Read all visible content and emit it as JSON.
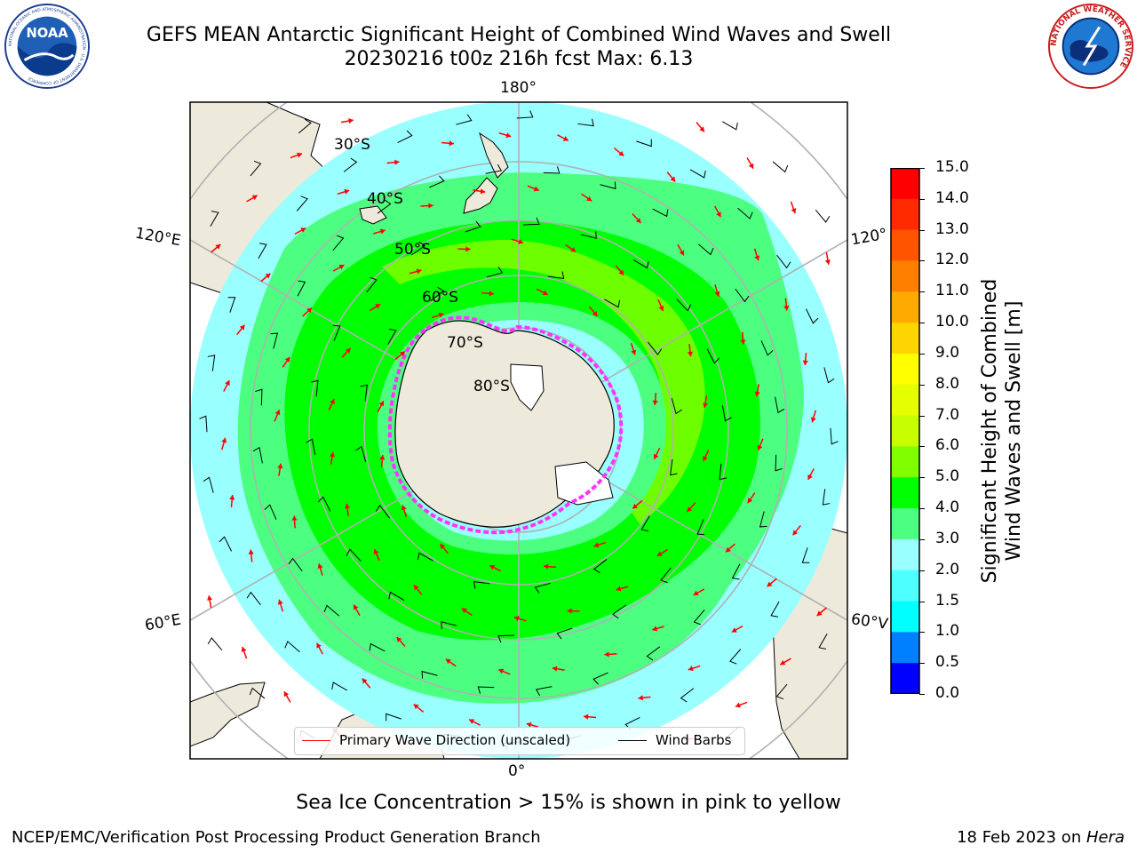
{
  "header": {
    "title_line1": "GEFS MEAN Antarctic Significant Height of Combined Wind Waves and Swell",
    "title_line2": "20230216 t00z 216h fcst   Max: 6.13"
  },
  "logos": {
    "noaa": {
      "center_text": "NOAA",
      "ring_text": "NATIONAL OCEANIC AND ATMOSPHERIC ADMINISTRATION · U.S. DEPARTMENT OF COMMERCE"
    },
    "nws": {
      "ring_text": "NATIONAL WEATHER SERVICE"
    }
  },
  "map": {
    "projection": "south-polar-stereographic",
    "longitude_labels": {
      "top": "180°",
      "bottom": "0°",
      "upper_left": "120°E",
      "lower_left": "60°E",
      "upper_right": "120°",
      "lower_right": "60°V"
    },
    "latitude_labels": [
      "30°S",
      "40°S",
      "50°S",
      "60°S",
      "70°S",
      "80°S"
    ],
    "colors": {
      "land": "#eeeadb",
      "ocean_low": "#8fffff",
      "ocean_mid": "#4dff80",
      "ocean_high": "#00ff00",
      "ice": "#ff33ff",
      "wave_arrow": "#ff0000",
      "wind_barb": "#000000",
      "graticule": "#b0b0b0"
    }
  },
  "legend": {
    "items": [
      {
        "label": "Primary Wave Direction (unscaled)",
        "color": "#ff0000"
      },
      {
        "label": "Wind Barbs",
        "color": "#000000"
      }
    ]
  },
  "colorbar": {
    "label_line1": "Significant Height of Combined",
    "label_line2": "Wind Waves and Swell [m]",
    "ticks": [
      "15.0",
      "14.0",
      "13.0",
      "12.0",
      "11.0",
      "10.0",
      "9.0",
      "8.0",
      "7.0",
      "6.0",
      "5.0",
      "4.0",
      "3.0",
      "2.0",
      "1.5",
      "1.0",
      "0.5",
      "0.0"
    ],
    "colors": [
      "#ff0000",
      "#ff2a00",
      "#ff5500",
      "#ff8000",
      "#ffaa00",
      "#ffd500",
      "#ffff00",
      "#e6ff00",
      "#c8ff00",
      "#80ff00",
      "#00ff00",
      "#4dff80",
      "#99ffff",
      "#4dffff",
      "#00ffff",
      "#0080ff",
      "#0000ff"
    ]
  },
  "chart_data": {
    "type": "heatmap",
    "title": "GEFS MEAN Antarctic Significant Height of Combined Wind Waves and Swell",
    "colorbar_unit": "m",
    "value_range": [
      0.0,
      15.0
    ],
    "max_value": 6.13
  },
  "footer": {
    "note": "Sea Ice Concentration > 15% is shown in pink to yellow",
    "left": "NCEP/EMC/Verification Post Processing Product Generation Branch",
    "right_prefix": "18 Feb 2023 on ",
    "right_host": "Hera"
  }
}
